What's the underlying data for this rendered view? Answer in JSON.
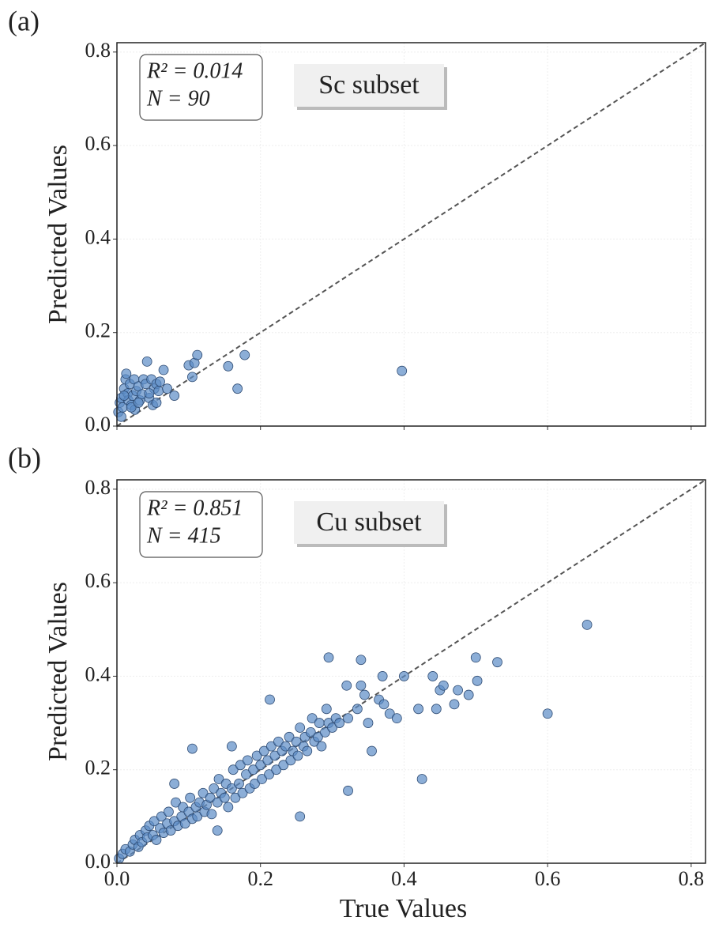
{
  "chart_data": [
    {
      "type": "scatter",
      "panel_label": "(a)",
      "ylabel": "Predicted Values",
      "stats_box": [
        "R² = 0.014",
        "N = 90"
      ],
      "subset_label": "Sc subset",
      "xlim": [
        0,
        0.82
      ],
      "ylim": [
        0,
        0.82
      ],
      "xticks": [
        0.0,
        0.2,
        0.4,
        0.6,
        0.8
      ],
      "yticks": [
        {
          "value": 0,
          "label": "0.0"
        },
        0.2,
        0.4,
        0.6,
        0.8
      ],
      "show_xtick_labels": false,
      "grid": true,
      "diagonal": true,
      "series": [
        {
          "color": "#5b8cc6",
          "x": [
            0.002,
            0.004,
            0.006,
            0.008,
            0.01,
            0.012,
            0.013,
            0.015,
            0.016,
            0.018,
            0.02,
            0.022,
            0.024,
            0.025,
            0.027,
            0.03,
            0.032,
            0.035,
            0.037,
            0.04,
            0.042,
            0.045,
            0.048,
            0.05,
            0.052,
            0.055,
            0.058,
            0.06,
            0.065,
            0.07,
            0.08,
            0.1,
            0.105,
            0.108,
            0.112,
            0.155,
            0.168,
            0.178,
            0.397,
            0.006,
            0.01,
            0.02,
            0.03,
            0.045,
            0.055
          ],
          "y": [
            0.03,
            0.05,
            0.06,
            0.04,
            0.08,
            0.1,
            0.112,
            0.07,
            0.055,
            0.09,
            0.045,
            0.065,
            0.1,
            0.035,
            0.075,
            0.085,
            0.055,
            0.068,
            0.1,
            0.09,
            0.138,
            0.06,
            0.1,
            0.045,
            0.08,
            0.09,
            0.075,
            0.095,
            0.12,
            0.08,
            0.065,
            0.13,
            0.105,
            0.135,
            0.152,
            0.128,
            0.08,
            0.152,
            0.118,
            0.02,
            0.065,
            0.04,
            0.05,
            0.07,
            0.05
          ]
        }
      ]
    },
    {
      "type": "scatter",
      "panel_label": "(b)",
      "ylabel": "Predicted Values",
      "xlabel": "True Values",
      "stats_box": [
        "R² = 0.851",
        "N = 415"
      ],
      "subset_label": "Cu subset",
      "xlim": [
        0,
        0.82
      ],
      "ylim": [
        0,
        0.82
      ],
      "xticks": [
        {
          "value": 0,
          "label": "0.0"
        },
        0.2,
        0.4,
        0.6,
        0.8
      ],
      "yticks": [
        {
          "value": 0,
          "label": "0.0"
        },
        0.2,
        0.4,
        0.6,
        0.8
      ],
      "show_xtick_labels": true,
      "grid": true,
      "diagonal": true,
      "series": [
        {
          "color": "#5b8cc6",
          "x": [
            0.003,
            0.008,
            0.012,
            0.018,
            0.022,
            0.025,
            0.03,
            0.032,
            0.035,
            0.04,
            0.042,
            0.045,
            0.05,
            0.052,
            0.055,
            0.06,
            0.062,
            0.065,
            0.07,
            0.072,
            0.075,
            0.08,
            0.082,
            0.085,
            0.09,
            0.092,
            0.095,
            0.1,
            0.102,
            0.105,
            0.11,
            0.112,
            0.115,
            0.12,
            0.122,
            0.125,
            0.13,
            0.132,
            0.135,
            0.14,
            0.142,
            0.145,
            0.15,
            0.152,
            0.155,
            0.16,
            0.162,
            0.165,
            0.17,
            0.172,
            0.175,
            0.18,
            0.182,
            0.185,
            0.19,
            0.192,
            0.195,
            0.2,
            0.202,
            0.205,
            0.21,
            0.212,
            0.215,
            0.22,
            0.222,
            0.225,
            0.23,
            0.232,
            0.235,
            0.24,
            0.242,
            0.245,
            0.25,
            0.252,
            0.255,
            0.26,
            0.262,
            0.265,
            0.27,
            0.272,
            0.275,
            0.28,
            0.282,
            0.285,
            0.29,
            0.292,
            0.295,
            0.3,
            0.305,
            0.31,
            0.32,
            0.322,
            0.335,
            0.34,
            0.345,
            0.35,
            0.355,
            0.365,
            0.37,
            0.372,
            0.38,
            0.39,
            0.4,
            0.42,
            0.425,
            0.44,
            0.445,
            0.45,
            0.455,
            0.47,
            0.475,
            0.49,
            0.5,
            0.502,
            0.53,
            0.6,
            0.655,
            0.105,
            0.295,
            0.34,
            0.255,
            0.322,
            0.213,
            0.16,
            0.08,
            0.14
          ],
          "y": [
            0.01,
            0.02,
            0.03,
            0.025,
            0.04,
            0.05,
            0.035,
            0.06,
            0.045,
            0.07,
            0.055,
            0.08,
            0.06,
            0.09,
            0.05,
            0.075,
            0.1,
            0.065,
            0.085,
            0.11,
            0.07,
            0.09,
            0.13,
            0.08,
            0.1,
            0.12,
            0.085,
            0.11,
            0.14,
            0.095,
            0.12,
            0.1,
            0.13,
            0.15,
            0.11,
            0.125,
            0.14,
            0.105,
            0.16,
            0.13,
            0.18,
            0.15,
            0.14,
            0.17,
            0.12,
            0.16,
            0.2,
            0.14,
            0.17,
            0.21,
            0.15,
            0.19,
            0.22,
            0.16,
            0.2,
            0.17,
            0.23,
            0.21,
            0.18,
            0.24,
            0.22,
            0.19,
            0.25,
            0.23,
            0.2,
            0.26,
            0.24,
            0.21,
            0.25,
            0.27,
            0.22,
            0.24,
            0.26,
            0.23,
            0.29,
            0.25,
            0.27,
            0.24,
            0.28,
            0.31,
            0.26,
            0.27,
            0.3,
            0.25,
            0.28,
            0.33,
            0.3,
            0.29,
            0.31,
            0.3,
            0.38,
            0.31,
            0.33,
            0.38,
            0.36,
            0.3,
            0.24,
            0.35,
            0.4,
            0.34,
            0.32,
            0.31,
            0.4,
            0.33,
            0.18,
            0.4,
            0.33,
            0.37,
            0.38,
            0.34,
            0.37,
            0.36,
            0.44,
            0.39,
            0.43,
            0.32,
            0.51,
            0.245,
            0.44,
            0.435,
            0.1,
            0.155,
            0.35,
            0.25,
            0.17,
            0.07
          ]
        }
      ]
    }
  ]
}
